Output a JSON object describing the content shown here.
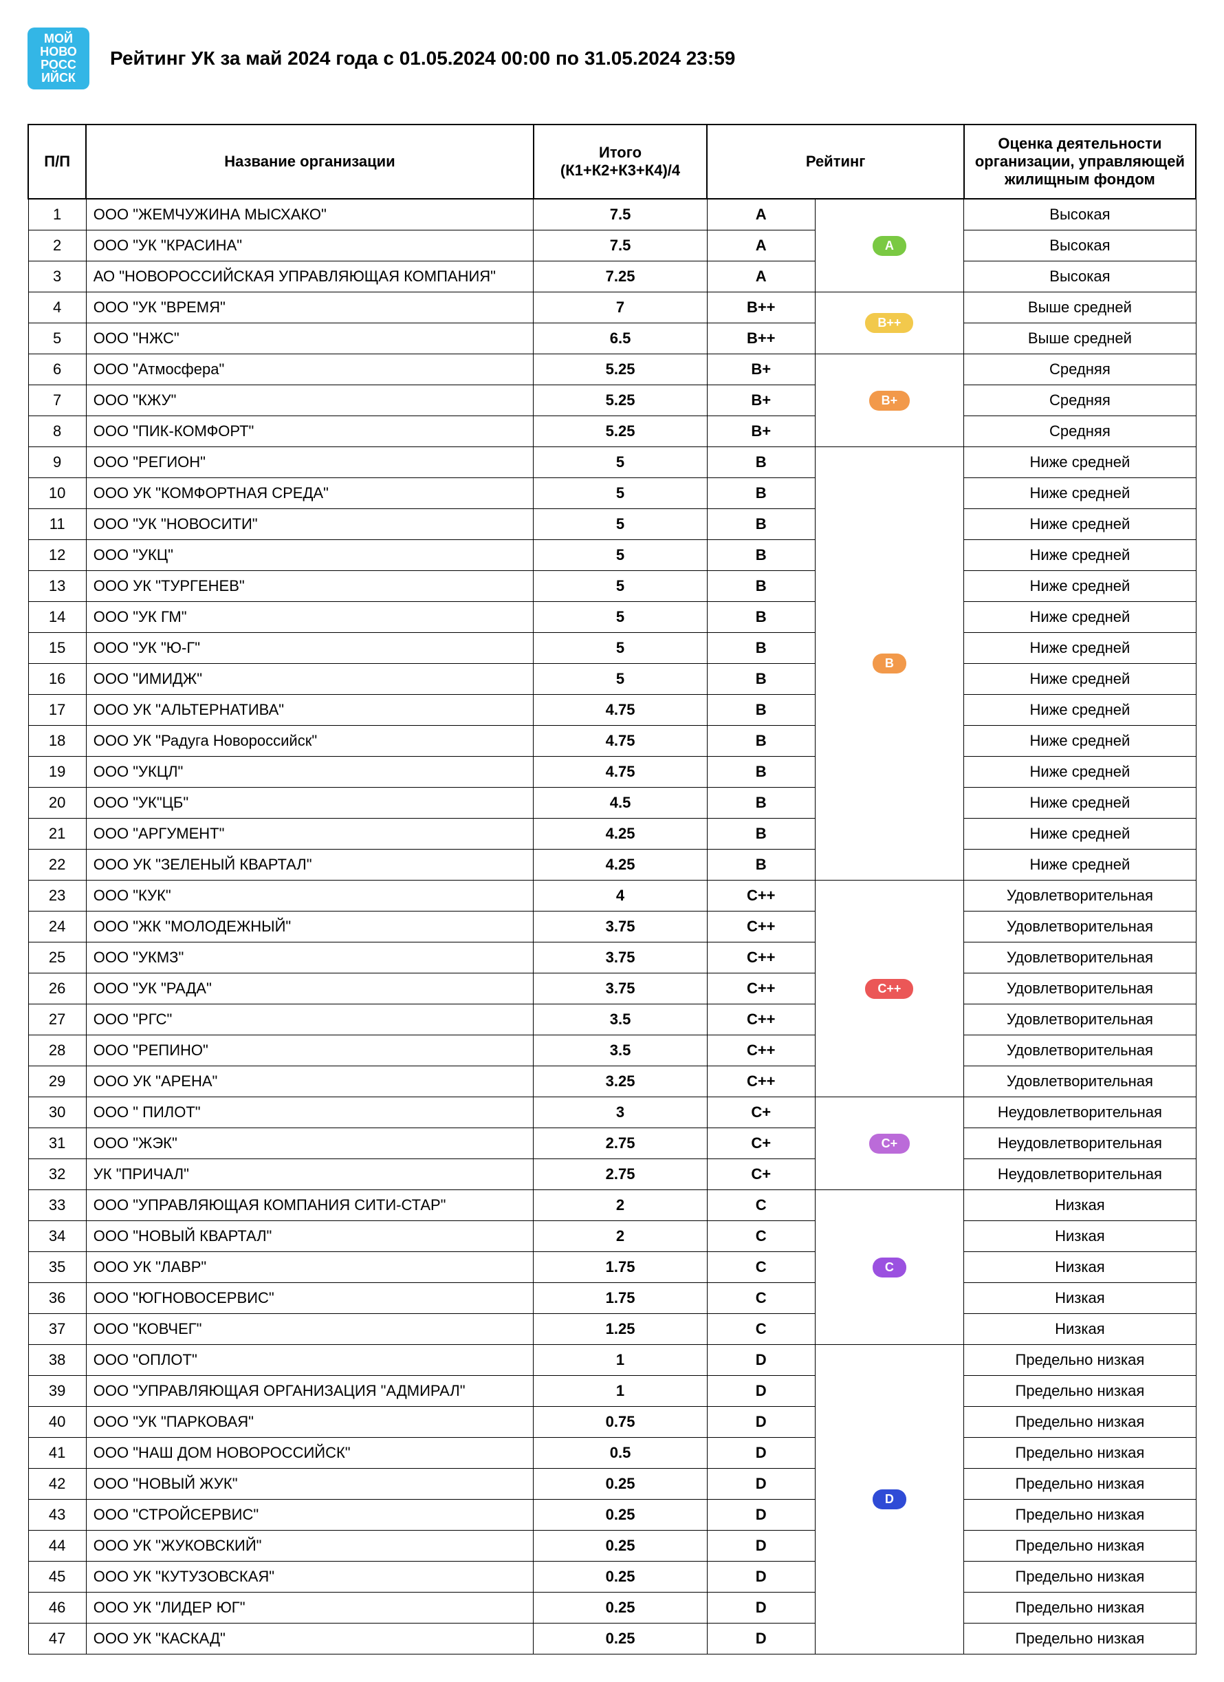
{
  "logo_lines": [
    "МОЙ",
    "НОВО",
    "РОСС",
    "ИЙСК"
  ],
  "title": "Рейтинг УК за май 2024 года  с 01.05.2024 00:00 по 31.05.2024 23:59",
  "columns": {
    "nn": "П/П",
    "name": "Название организации",
    "sum": "Итого (К1+К2+К3+К4)/4",
    "rating": "Рейтинг",
    "eval": "Оценка деятельности организации, управляющей жилищным фондом"
  },
  "groups": [
    {
      "badge_label": "A",
      "badge_color": "#7ac943",
      "rows": [
        {
          "n": 1,
          "name": "ООО \"ЖЕМЧУЖИНА МЫСХАКО\"",
          "sum": "7.5",
          "rating": "A",
          "eval": "Высокая"
        },
        {
          "n": 2,
          "name": "ООО \"УК \"КРАСИНА\"",
          "sum": "7.5",
          "rating": "A",
          "eval": "Высокая"
        },
        {
          "n": 3,
          "name": "АО \"НОВОРОССИЙСКАЯ УПРАВЛЯЮЩАЯ КОМПАНИЯ\"",
          "sum": "7.25",
          "rating": "A",
          "eval": "Высокая"
        }
      ]
    },
    {
      "badge_label": "B++",
      "badge_color": "#f2c94c",
      "rows": [
        {
          "n": 4,
          "name": "ООО \"УК \"ВРЕМЯ\"",
          "sum": "7",
          "rating": "B++",
          "eval": "Выше средней"
        },
        {
          "n": 5,
          "name": "ООО \"НЖС\"",
          "sum": "6.5",
          "rating": "B++",
          "eval": "Выше средней"
        }
      ]
    },
    {
      "badge_label": "B+",
      "badge_color": "#f2994a",
      "rows": [
        {
          "n": 6,
          "name": "ООО \"Атмосфера\"",
          "sum": "5.25",
          "rating": "B+",
          "eval": "Средняя"
        },
        {
          "n": 7,
          "name": "ООО \"КЖУ\"",
          "sum": "5.25",
          "rating": "B+",
          "eval": "Средняя"
        },
        {
          "n": 8,
          "name": "ООО \"ПИК-КОМФОРТ\"",
          "sum": "5.25",
          "rating": "B+",
          "eval": "Средняя"
        }
      ]
    },
    {
      "badge_label": "B",
      "badge_color": "#f2994a",
      "rows": [
        {
          "n": 9,
          "name": "ООО \"РЕГИОН\"",
          "sum": "5",
          "rating": "B",
          "eval": "Ниже средней"
        },
        {
          "n": 10,
          "name": "ООО УК \"КОМФОРТНАЯ СРЕДА\"",
          "sum": "5",
          "rating": "B",
          "eval": "Ниже средней"
        },
        {
          "n": 11,
          "name": "ООО \"УК \"НОВОСИТИ\"",
          "sum": "5",
          "rating": "B",
          "eval": "Ниже средней"
        },
        {
          "n": 12,
          "name": "ООО \"УКЦ\"",
          "sum": "5",
          "rating": "B",
          "eval": "Ниже средней"
        },
        {
          "n": 13,
          "name": "ООО УК \"ТУРГЕНЕВ\"",
          "sum": "5",
          "rating": "B",
          "eval": "Ниже средней"
        },
        {
          "n": 14,
          "name": "ООО \"УК ГМ\"",
          "sum": "5",
          "rating": "B",
          "eval": "Ниже средней"
        },
        {
          "n": 15,
          "name": "ООО \"УК \"Ю-Г\"",
          "sum": "5",
          "rating": "B",
          "eval": "Ниже средней"
        },
        {
          "n": 16,
          "name": "ООО \"ИМИДЖ\"",
          "sum": "5",
          "rating": "B",
          "eval": "Ниже средней"
        },
        {
          "n": 17,
          "name": "ООО УК \"АЛЬТЕРНАТИВА\"",
          "sum": "4.75",
          "rating": "B",
          "eval": "Ниже средней"
        },
        {
          "n": 18,
          "name": "ООО УК \"Радуга Новороссийск\"",
          "sum": "4.75",
          "rating": "B",
          "eval": "Ниже средней"
        },
        {
          "n": 19,
          "name": "ООО \"УКЦЛ\"",
          "sum": "4.75",
          "rating": "B",
          "eval": "Ниже средней"
        },
        {
          "n": 20,
          "name": "ООО \"УК\"ЦБ\"",
          "sum": "4.5",
          "rating": "B",
          "eval": "Ниже средней"
        },
        {
          "n": 21,
          "name": "ООО \"АРГУМЕНТ\"",
          "sum": "4.25",
          "rating": "B",
          "eval": "Ниже средней"
        },
        {
          "n": 22,
          "name": "ООО УК \"ЗЕЛЕНЫЙ КВАРТАЛ\"",
          "sum": "4.25",
          "rating": "B",
          "eval": "Ниже средней"
        }
      ]
    },
    {
      "badge_label": "C++",
      "badge_color": "#eb5757",
      "rows": [
        {
          "n": 23,
          "name": "ООО \"КУК\"",
          "sum": "4",
          "rating": "C++",
          "eval": "Удовлетворительная"
        },
        {
          "n": 24,
          "name": "ООО \"ЖК \"МОЛОДЕЖНЫЙ\"",
          "sum": "3.75",
          "rating": "C++",
          "eval": "Удовлетворительная"
        },
        {
          "n": 25,
          "name": "ООО \"УКМЗ\"",
          "sum": "3.75",
          "rating": "C++",
          "eval": "Удовлетворительная"
        },
        {
          "n": 26,
          "name": "ООО \"УК \"РАДА\"",
          "sum": "3.75",
          "rating": "C++",
          "eval": "Удовлетворительная"
        },
        {
          "n": 27,
          "name": "ООО \"РГС\"",
          "sum": "3.5",
          "rating": "C++",
          "eval": "Удовлетворительная"
        },
        {
          "n": 28,
          "name": "ООО \"РЕПИНО\"",
          "sum": "3.5",
          "rating": "C++",
          "eval": "Удовлетворительная"
        },
        {
          "n": 29,
          "name": "ООО УК  \"АРЕНА\"",
          "sum": "3.25",
          "rating": "C++",
          "eval": "Удовлетворительная"
        }
      ]
    },
    {
      "badge_label": "C+",
      "badge_color": "#bb6bd9",
      "rows": [
        {
          "n": 30,
          "name": "ООО \" ПИЛОТ\"",
          "sum": "3",
          "rating": "C+",
          "eval": "Неудовлетворительная"
        },
        {
          "n": 31,
          "name": "ООО \"ЖЭК\"",
          "sum": "2.75",
          "rating": "C+",
          "eval": "Неудовлетворительная"
        },
        {
          "n": 32,
          "name": "УК \"ПРИЧАЛ\"",
          "sum": "2.75",
          "rating": "C+",
          "eval": "Неудовлетворительная"
        }
      ]
    },
    {
      "badge_label": "C",
      "badge_color": "#9b51e0",
      "rows": [
        {
          "n": 33,
          "name": "ООО \"УПРАВЛЯЮЩАЯ КОМПАНИЯ СИТИ-СТАР\"",
          "sum": "2",
          "rating": "C",
          "eval": "Низкая"
        },
        {
          "n": 34,
          "name": "ООО \"НОВЫЙ КВАРТАЛ\"",
          "sum": "2",
          "rating": "C",
          "eval": "Низкая"
        },
        {
          "n": 35,
          "name": "ООО УК \"ЛАВР\"",
          "sum": "1.75",
          "rating": "C",
          "eval": "Низкая"
        },
        {
          "n": 36,
          "name": "ООО \"ЮГНОВОСЕРВИС\"",
          "sum": "1.75",
          "rating": "C",
          "eval": "Низкая"
        },
        {
          "n": 37,
          "name": "ООО \"КОВЧЕГ\"",
          "sum": "1.25",
          "rating": "C",
          "eval": "Низкая"
        }
      ]
    },
    {
      "badge_label": "D",
      "badge_color": "#2f4bd6",
      "rows": [
        {
          "n": 38,
          "name": "ООО \"ОПЛОТ\"",
          "sum": "1",
          "rating": "D",
          "eval": "Предельно низкая"
        },
        {
          "n": 39,
          "name": "ООО \"УПРАВЛЯЮЩАЯ ОРГАНИЗАЦИЯ \"АДМИРАЛ\"",
          "sum": "1",
          "rating": "D",
          "eval": "Предельно низкая"
        },
        {
          "n": 40,
          "name": "ООО \"УК \"ПАРКОВАЯ\"",
          "sum": "0.75",
          "rating": "D",
          "eval": "Предельно низкая"
        },
        {
          "n": 41,
          "name": "ООО \"НАШ ДОМ НОВОРОССИЙСК\"",
          "sum": "0.5",
          "rating": "D",
          "eval": "Предельно низкая"
        },
        {
          "n": 42,
          "name": "ООО \"НОВЫЙ ЖУК\"",
          "sum": "0.25",
          "rating": "D",
          "eval": "Предельно низкая"
        },
        {
          "n": 43,
          "name": "ООО \"СТРОЙСЕРВИС\"",
          "sum": "0.25",
          "rating": "D",
          "eval": "Предельно низкая"
        },
        {
          "n": 44,
          "name": "ООО УК \"ЖУКОВСКИЙ\"",
          "sum": "0.25",
          "rating": "D",
          "eval": "Предельно низкая"
        },
        {
          "n": 45,
          "name": "ООО УК \"КУТУЗОВСКАЯ\"",
          "sum": "0.25",
          "rating": "D",
          "eval": "Предельно низкая"
        },
        {
          "n": 46,
          "name": "ООО УК \"ЛИДЕР ЮГ\"",
          "sum": "0.25",
          "rating": "D",
          "eval": "Предельно низкая"
        },
        {
          "n": 47,
          "name": "ООО УК \"КАСКАД\"",
          "sum": "0.25",
          "rating": "D",
          "eval": "Предельно низкая"
        }
      ]
    }
  ]
}
